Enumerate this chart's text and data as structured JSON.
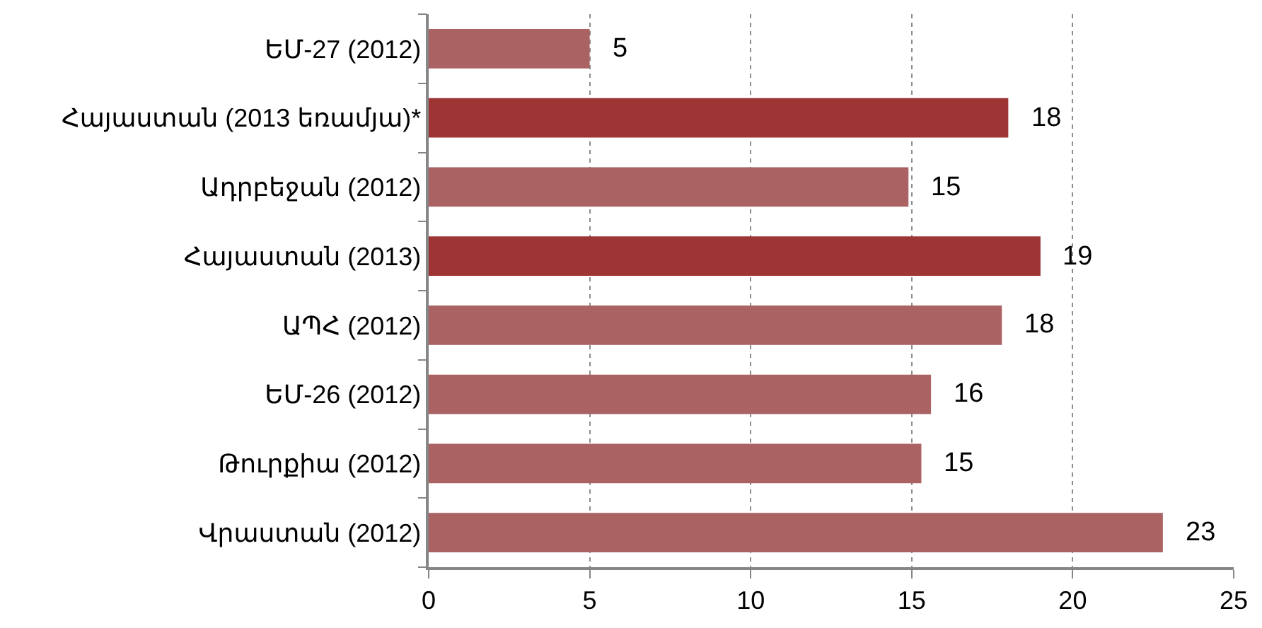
{
  "chart_data": {
    "type": "bar",
    "orientation": "horizontal",
    "categories": [
      "ԵՄ-27 (2012)",
      "Հայաստան (2013 եռամյա)*",
      "Ադրբեջան (2012)",
      "Հայաստան (2013)",
      "ԱՊՀ (2012)",
      "ԵՄ-26 (2012)",
      "Թուրքիա (2012)",
      "Վրաստան (2012)"
    ],
    "values": [
      5.0,
      18.0,
      14.9,
      19.0,
      17.8,
      15.6,
      15.3,
      22.8
    ],
    "value_labels": [
      "5",
      "18",
      "15",
      "19",
      "18",
      "16",
      "15",
      "23"
    ],
    "colors": [
      "#aa6262",
      "#9e3535",
      "#aa6262",
      "#9e3535",
      "#aa6262",
      "#aa6262",
      "#aa6262",
      "#aa6262"
    ],
    "xlim": [
      0,
      25
    ],
    "xticks": [
      0,
      5,
      10,
      15,
      20,
      25
    ],
    "grid": "x"
  }
}
